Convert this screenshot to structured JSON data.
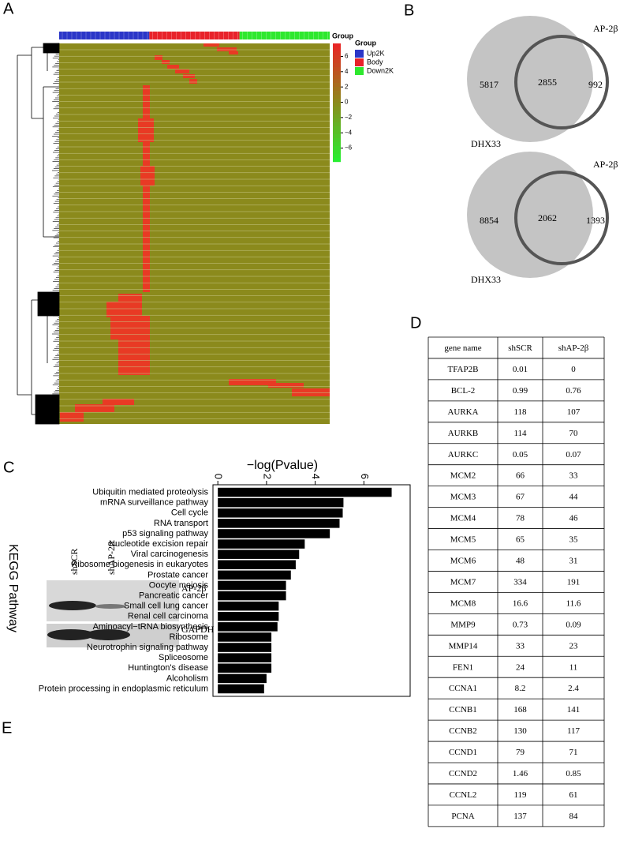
{
  "panel_labels": [
    "A",
    "B",
    "C",
    "D",
    "E"
  ],
  "heatmap": {
    "legend_title": "Group",
    "groups": [
      {
        "name": "Up2K",
        "color": "#2b36c8"
      },
      {
        "name": "Body",
        "color": "#e8222a"
      },
      {
        "name": "Down2K",
        "color": "#2ee82e"
      }
    ],
    "colorbar_title": "Group",
    "clim": [
      -7.8,
      7.7
    ],
    "colorbar_ticks": [
      6,
      4,
      2,
      0,
      {
        "value": -2,
        "label": "−2"
      },
      {
        "value": -4,
        "label": "−4"
      },
      {
        "value": -6,
        "label": "−6"
      }
    ]
  },
  "venn": [
    {
      "left_label": "DHX33",
      "right_label": "AP-2β",
      "left_only": 5817,
      "overlap": 2855,
      "right_only": 992
    },
    {
      "left_label": "DHX33",
      "right_label": "AP-2β",
      "left_only": 8854,
      "overlap": 2062,
      "right_only": 1393
    }
  ],
  "chart_data": {
    "type": "bar",
    "orientation": "horizontal",
    "title": "−log(Pvalue)",
    "y_label": "KEGG Pathway",
    "color": "#000000",
    "categories": [
      "Ubiquitin mediated proteolysis",
      "mRNA surveillance pathway",
      "Cell cycle",
      "RNA transport",
      "p53 signaling pathway",
      "Nucleotide excision repair",
      "Viral carcinogenesis",
      "Ribosome biogenesis in eukaryotes",
      "Prostate cancer",
      "Oocyte meiosis",
      "Pancreatic cancer",
      "Small cell lung cancer",
      "Renal cell carcinoma",
      "Aminoacyl−tRNA biosynthesis",
      "Ribosome",
      "Neurotrophin signaling pathway",
      "Spliceosome",
      "Huntington's disease",
      "Alcoholism",
      "Protein processing in endoplasmic reticulum"
    ],
    "values": [
      7.14,
      5.16,
      5.13,
      5.0,
      4.6,
      3.57,
      3.34,
      3.2,
      3.0,
      2.8,
      2.8,
      2.5,
      2.5,
      2.45,
      2.2,
      2.2,
      2.2,
      2.2,
      2.0,
      1.9
    ],
    "xlim": [
      -0.2,
      7.9
    ],
    "xticks": [
      0,
      2,
      4,
      6
    ]
  },
  "table": {
    "header": [
      "gene name",
      "shSCR",
      "shAP-2β"
    ],
    "rows": [
      [
        "TFAP2B",
        "0.01",
        "0"
      ],
      [
        "BCL-2",
        "0.99",
        "0.76"
      ],
      [
        "AURKA",
        "118",
        "107"
      ],
      [
        "AURKB",
        "114",
        "70"
      ],
      [
        "AURKC",
        "0.05",
        "0.07"
      ],
      [
        "MCM2",
        "66",
        "33"
      ],
      [
        "MCM3",
        "67",
        "44"
      ],
      [
        "MCM4",
        "78",
        "46"
      ],
      [
        "MCM5",
        "65",
        "35"
      ],
      [
        "MCM6",
        "48",
        "31"
      ],
      [
        "MCM7",
        "334",
        "191"
      ],
      [
        "MCM8",
        "16.6",
        "11.6"
      ],
      [
        "MMP9",
        "0.73",
        "0.09"
      ],
      [
        "MMP14",
        "33",
        "23"
      ],
      [
        "FEN1",
        "24",
        "11"
      ],
      [
        "CCNA1",
        "8.2",
        "2.4"
      ],
      [
        "CCNB1",
        "168",
        "141"
      ],
      [
        "CCNB2",
        "130",
        "117"
      ],
      [
        "CCND1",
        "79",
        "71"
      ],
      [
        "CCND2",
        "1.46",
        "0.85"
      ],
      [
        "CCNL2",
        "119",
        "61"
      ],
      [
        "PCNA",
        "137",
        "84"
      ]
    ]
  },
  "western": {
    "lanes": [
      "shSCR",
      "shAP-2β"
    ],
    "bands": [
      "AP-2β",
      "GAPDH"
    ]
  }
}
